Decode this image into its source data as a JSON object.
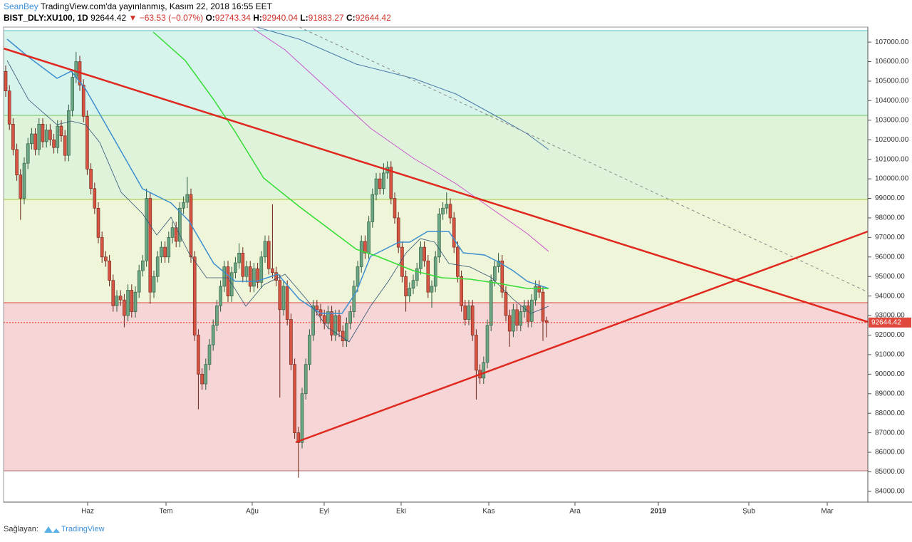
{
  "header": {
    "author": "SeanBey",
    "published": "TradingView.com'da yayınlanmış, Kasım 22, 2018 16:55 EET",
    "symbol": "BIST_DLY:XU100, 1D",
    "last": "92644.42",
    "direction": "▼",
    "change": "−63.53 (−0.07%)",
    "o_label": "O:",
    "o": "92743.34",
    "h_label": "H:",
    "h": "92940.04",
    "l_label": "L:",
    "l": "91883.27",
    "c_label": "C:",
    "c": "92644.42"
  },
  "chart_data": {
    "type": "candlestick",
    "up_color": "#6ba583",
    "down_color": "#d75442",
    "ylim": [
      83450,
      107770
    ],
    "yticks": [
      {
        "value": 84000,
        "label": "84000.00"
      },
      {
        "value": 85000,
        "label": "85000.00"
      },
      {
        "value": 86000,
        "label": "86000.00"
      },
      {
        "value": 87000,
        "label": "87000.00"
      },
      {
        "value": 88000,
        "label": "88000.00"
      },
      {
        "value": 89000,
        "label": "89000.00"
      },
      {
        "value": 90000,
        "label": "90000.00"
      },
      {
        "value": 91000,
        "label": "91000.00"
      },
      {
        "value": 92000,
        "label": "92000.00"
      },
      {
        "value": 93000,
        "label": "93000.00"
      },
      {
        "value": 94000,
        "label": "94000.00"
      },
      {
        "value": 95000,
        "label": "95000.00"
      },
      {
        "value": 96000,
        "label": "96000.00"
      },
      {
        "value": 97000,
        "label": "97000.00"
      },
      {
        "value": 98000,
        "label": "98000.00"
      },
      {
        "value": 99000,
        "label": "99000.00"
      },
      {
        "value": 100000,
        "label": "100000.00"
      },
      {
        "value": 101000,
        "label": "101000.00"
      },
      {
        "value": 102000,
        "label": "102000.00"
      },
      {
        "value": 103000,
        "label": "103000.00"
      },
      {
        "value": 104000,
        "label": "104000.00"
      },
      {
        "value": 105000,
        "label": "105000.00"
      },
      {
        "value": 106000,
        "label": "106000.00"
      },
      {
        "value": 107000,
        "label": "107000.00"
      }
    ],
    "xtick_labels": [
      "Haz",
      "Tem",
      "Ağu",
      "Eyl",
      "Eki",
      "Kas",
      "Ara",
      "2019",
      "Şub",
      "Mar"
    ],
    "last_price_label": "92644.42",
    "candles": [
      [
        105500,
        105800,
        104200,
        104500
      ],
      [
        104500,
        104800,
        102500,
        102800
      ],
      [
        102800,
        103100,
        101200,
        101500
      ],
      [
        101500,
        101800,
        99900,
        100200
      ],
      [
        100200,
        100500,
        97900,
        99000
      ],
      [
        99000,
        101100,
        98700,
        100800
      ],
      [
        100800,
        102100,
        100500,
        101800
      ],
      [
        101800,
        102600,
        101500,
        102300
      ],
      [
        102300,
        102600,
        101200,
        101500
      ],
      [
        101500,
        103100,
        101200,
        102800
      ],
      [
        102800,
        103100,
        101600,
        101900
      ],
      [
        101900,
        102800,
        101600,
        102500
      ],
      [
        102500,
        102800,
        101700,
        102000
      ],
      [
        102000,
        102300,
        101300,
        101600
      ],
      [
        101600,
        103000,
        101300,
        102700
      ],
      [
        102700,
        103000,
        101900,
        102200
      ],
      [
        102200,
        102500,
        100900,
        101200
      ],
      [
        101200,
        103800,
        100900,
        103500
      ],
      [
        103500,
        105500,
        103200,
        105200
      ],
      [
        105200,
        106500,
        104900,
        106000
      ],
      [
        106000,
        106300,
        104500,
        104800
      ],
      [
        104800,
        105100,
        102900,
        103200
      ],
      [
        103200,
        103500,
        100200,
        100500
      ],
      [
        100500,
        100800,
        99200,
        99500
      ],
      [
        99500,
        99800,
        98200,
        98500
      ],
      [
        98500,
        98800,
        96700,
        97000
      ],
      [
        97000,
        97300,
        95700,
        96000
      ],
      [
        96000,
        96300,
        95500,
        95800
      ],
      [
        95800,
        96100,
        94500,
        94800
      ],
      [
        94800,
        95100,
        93200,
        93500
      ],
      [
        93500,
        94300,
        93200,
        94000
      ],
      [
        94000,
        94300,
        93500,
        93800
      ],
      [
        93800,
        94100,
        92400,
        93000
      ],
      [
        93000,
        94600,
        92700,
        94300
      ],
      [
        94300,
        94600,
        92900,
        93200
      ],
      [
        93200,
        94500,
        92900,
        94200
      ],
      [
        94200,
        95600,
        93900,
        95300
      ],
      [
        95300,
        96100,
        95000,
        95800
      ],
      [
        95800,
        99500,
        95500,
        99000
      ],
      [
        99000,
        99300,
        93600,
        94200
      ],
      [
        94200,
        95300,
        93900,
        95000
      ],
      [
        95000,
        96300,
        94700,
        96000
      ],
      [
        96000,
        96800,
        95700,
        96500
      ],
      [
        96500,
        96800,
        95700,
        96000
      ],
      [
        96000,
        97300,
        95700,
        97000
      ],
      [
        97000,
        97800,
        96700,
        97500
      ],
      [
        97500,
        97800,
        96500,
        96800
      ],
      [
        96800,
        98800,
        96500,
        98500
      ],
      [
        98500,
        99100,
        98200,
        98800
      ],
      [
        98800,
        100100,
        98500,
        99200
      ],
      [
        99200,
        99500,
        95700,
        96000
      ],
      [
        96000,
        96300,
        91700,
        92000
      ],
      [
        92000,
        92300,
        88200,
        90000
      ],
      [
        90000,
        90300,
        89200,
        89500
      ],
      [
        89500,
        90800,
        89200,
        90500
      ],
      [
        90500,
        91800,
        90200,
        91500
      ],
      [
        91500,
        92800,
        91200,
        92500
      ],
      [
        92500,
        93800,
        92200,
        93500
      ],
      [
        93500,
        94800,
        93200,
        94500
      ],
      [
        94500,
        95800,
        94200,
        95500
      ],
      [
        95500,
        95800,
        93700,
        94000
      ],
      [
        94000,
        95500,
        93700,
        95200
      ],
      [
        95200,
        96000,
        94900,
        95700
      ],
      [
        95700,
        96700,
        95400,
        96200
      ],
      [
        96200,
        96500,
        94700,
        95000
      ],
      [
        95000,
        95800,
        94700,
        95500
      ],
      [
        95500,
        95800,
        94200,
        94500
      ],
      [
        94500,
        95700,
        94200,
        95400
      ],
      [
        95400,
        95700,
        94400,
        94700
      ],
      [
        94700,
        96300,
        94400,
        96000
      ],
      [
        96000,
        97100,
        95700,
        96800
      ],
      [
        96800,
        97100,
        95100,
        95400
      ],
      [
        95400,
        98700,
        94900,
        95200
      ],
      [
        95200,
        95500,
        94500,
        94800
      ],
      [
        94800,
        95100,
        88800,
        93300
      ],
      [
        93300,
        94800,
        93000,
        94500
      ],
      [
        94500,
        94800,
        92500,
        92800
      ],
      [
        92800,
        93100,
        90200,
        90500
      ],
      [
        90500,
        90800,
        86700,
        87000
      ],
      [
        87000,
        87300,
        84700,
        86500
      ],
      [
        86500,
        89300,
        86200,
        89000
      ],
      [
        89000,
        90800,
        88700,
        90500
      ],
      [
        90500,
        92300,
        90200,
        92000
      ],
      [
        92000,
        93800,
        91700,
        93500
      ],
      [
        93500,
        93800,
        93000,
        93300
      ],
      [
        93300,
        93600,
        92700,
        93000
      ],
      [
        93000,
        93300,
        92300,
        92600
      ],
      [
        92600,
        93500,
        92300,
        93200
      ],
      [
        93200,
        93500,
        91700,
        92000
      ],
      [
        92000,
        93300,
        91700,
        93000
      ],
      [
        93000,
        93300,
        91900,
        92200
      ],
      [
        92200,
        92500,
        91400,
        91700
      ],
      [
        91700,
        92900,
        91400,
        92600
      ],
      [
        92600,
        93500,
        92300,
        93200
      ],
      [
        93200,
        94800,
        92900,
        94500
      ],
      [
        94500,
        95800,
        94200,
        95500
      ],
      [
        95500,
        97100,
        95200,
        96800
      ],
      [
        96800,
        97100,
        95900,
        96200
      ],
      [
        96200,
        98100,
        95900,
        97800
      ],
      [
        97800,
        99500,
        97500,
        99200
      ],
      [
        99200,
        100300,
        98900,
        100000
      ],
      [
        100000,
        100300,
        99200,
        99500
      ],
      [
        99500,
        100800,
        99200,
        100300
      ],
      [
        100300,
        100900,
        100000,
        100600
      ],
      [
        100600,
        100900,
        98700,
        99000
      ],
      [
        99000,
        99300,
        97700,
        98000
      ],
      [
        98000,
        98300,
        96200,
        96500
      ],
      [
        96500,
        96800,
        94700,
        95000
      ],
      [
        95000,
        95300,
        93200,
        94000
      ],
      [
        94000,
        94700,
        93700,
        94400
      ],
      [
        94400,
        95100,
        94100,
        94800
      ],
      [
        94800,
        95700,
        94500,
        95400
      ],
      [
        95400,
        96800,
        95100,
        96500
      ],
      [
        96500,
        96800,
        95500,
        95800
      ],
      [
        95800,
        96100,
        93900,
        94200
      ],
      [
        94200,
        94800,
        93400,
        94500
      ],
      [
        94500,
        96300,
        94200,
        96000
      ],
      [
        96000,
        98500,
        95700,
        98200
      ],
      [
        98200,
        98800,
        97900,
        98500
      ],
      [
        98500,
        99300,
        98200,
        98700
      ],
      [
        98700,
        99000,
        97700,
        98000
      ],
      [
        98000,
        98300,
        96200,
        96500
      ],
      [
        96500,
        96800,
        94700,
        95000
      ],
      [
        95000,
        95300,
        93200,
        93500
      ],
      [
        93500,
        93800,
        92500,
        92800
      ],
      [
        92800,
        93800,
        92500,
        93500
      ],
      [
        93500,
        93800,
        91700,
        92000
      ],
      [
        92000,
        92300,
        88700,
        90200
      ],
      [
        90200,
        90500,
        89500,
        89800
      ],
      [
        89800,
        90900,
        89500,
        90600
      ],
      [
        90600,
        92800,
        90300,
        92500
      ],
      [
        92500,
        95100,
        92200,
        94800
      ],
      [
        94800,
        95800,
        94500,
        95500
      ],
      [
        95500,
        96200,
        95200,
        95800
      ],
      [
        95800,
        96100,
        93900,
        94200
      ],
      [
        94200,
        94500,
        92700,
        93000
      ],
      [
        93000,
        93300,
        91400,
        92200
      ],
      [
        92200,
        93600,
        91900,
        93300
      ],
      [
        93300,
        93600,
        92200,
        92500
      ],
      [
        92500,
        93500,
        92200,
        93200
      ],
      [
        93200,
        93800,
        92900,
        93500
      ],
      [
        93500,
        93800,
        92400,
        92700
      ],
      [
        92700,
        94100,
        92400,
        93800
      ],
      [
        93800,
        94800,
        93500,
        94500
      ],
      [
        94500,
        94800,
        93900,
        94200
      ],
      [
        94200,
        94500,
        91700,
        92707.95
      ],
      [
        92743.34,
        92940.04,
        91883.27,
        92644.42
      ]
    ]
  },
  "footer": {
    "provider": "Sağlayan:",
    "brand": "TradingView"
  }
}
